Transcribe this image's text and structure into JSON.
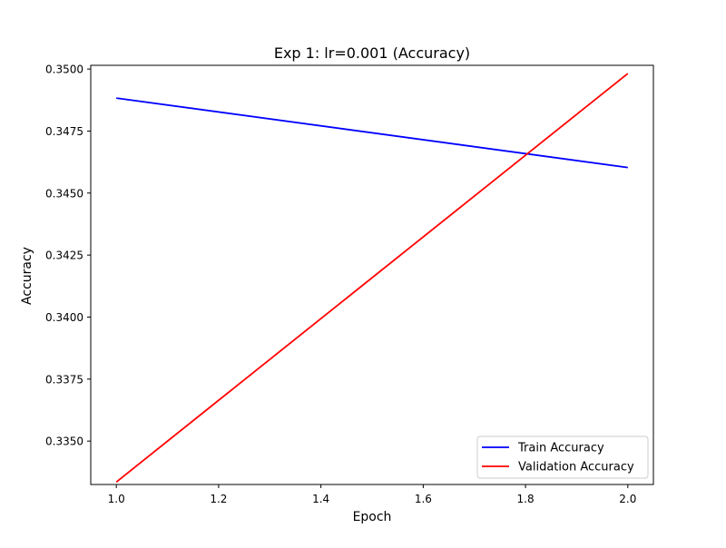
{
  "chart_data": {
    "type": "line",
    "title": "Exp 1: lr=0.001 (Accuracy)",
    "xlabel": "Epoch",
    "ylabel": "Accuracy",
    "xlim": [
      0.95,
      2.05
    ],
    "ylim": [
      0.33325,
      0.35015
    ],
    "xticks": [
      1.0,
      1.2,
      1.4,
      1.6,
      1.8,
      2.0
    ],
    "xtick_labels": [
      "1.0",
      "1.2",
      "1.4",
      "1.6",
      "1.8",
      "2.0"
    ],
    "yticks": [
      0.335,
      0.3375,
      0.34,
      0.3425,
      0.345,
      0.3475,
      0.35
    ],
    "ytick_labels": [
      "0.3350",
      "0.3375",
      "0.3400",
      "0.3425",
      "0.3450",
      "0.3475",
      "0.3500"
    ],
    "grid": false,
    "legend_position": "lower-right",
    "series": [
      {
        "name": "Train Accuracy",
        "color": "#0000ff",
        "x": [
          1,
          2
        ],
        "y": [
          0.34883,
          0.34603
        ]
      },
      {
        "name": "Validation Accuracy",
        "color": "#ff0000",
        "x": [
          1,
          2
        ],
        "y": [
          0.33335,
          0.34982
        ]
      }
    ]
  }
}
